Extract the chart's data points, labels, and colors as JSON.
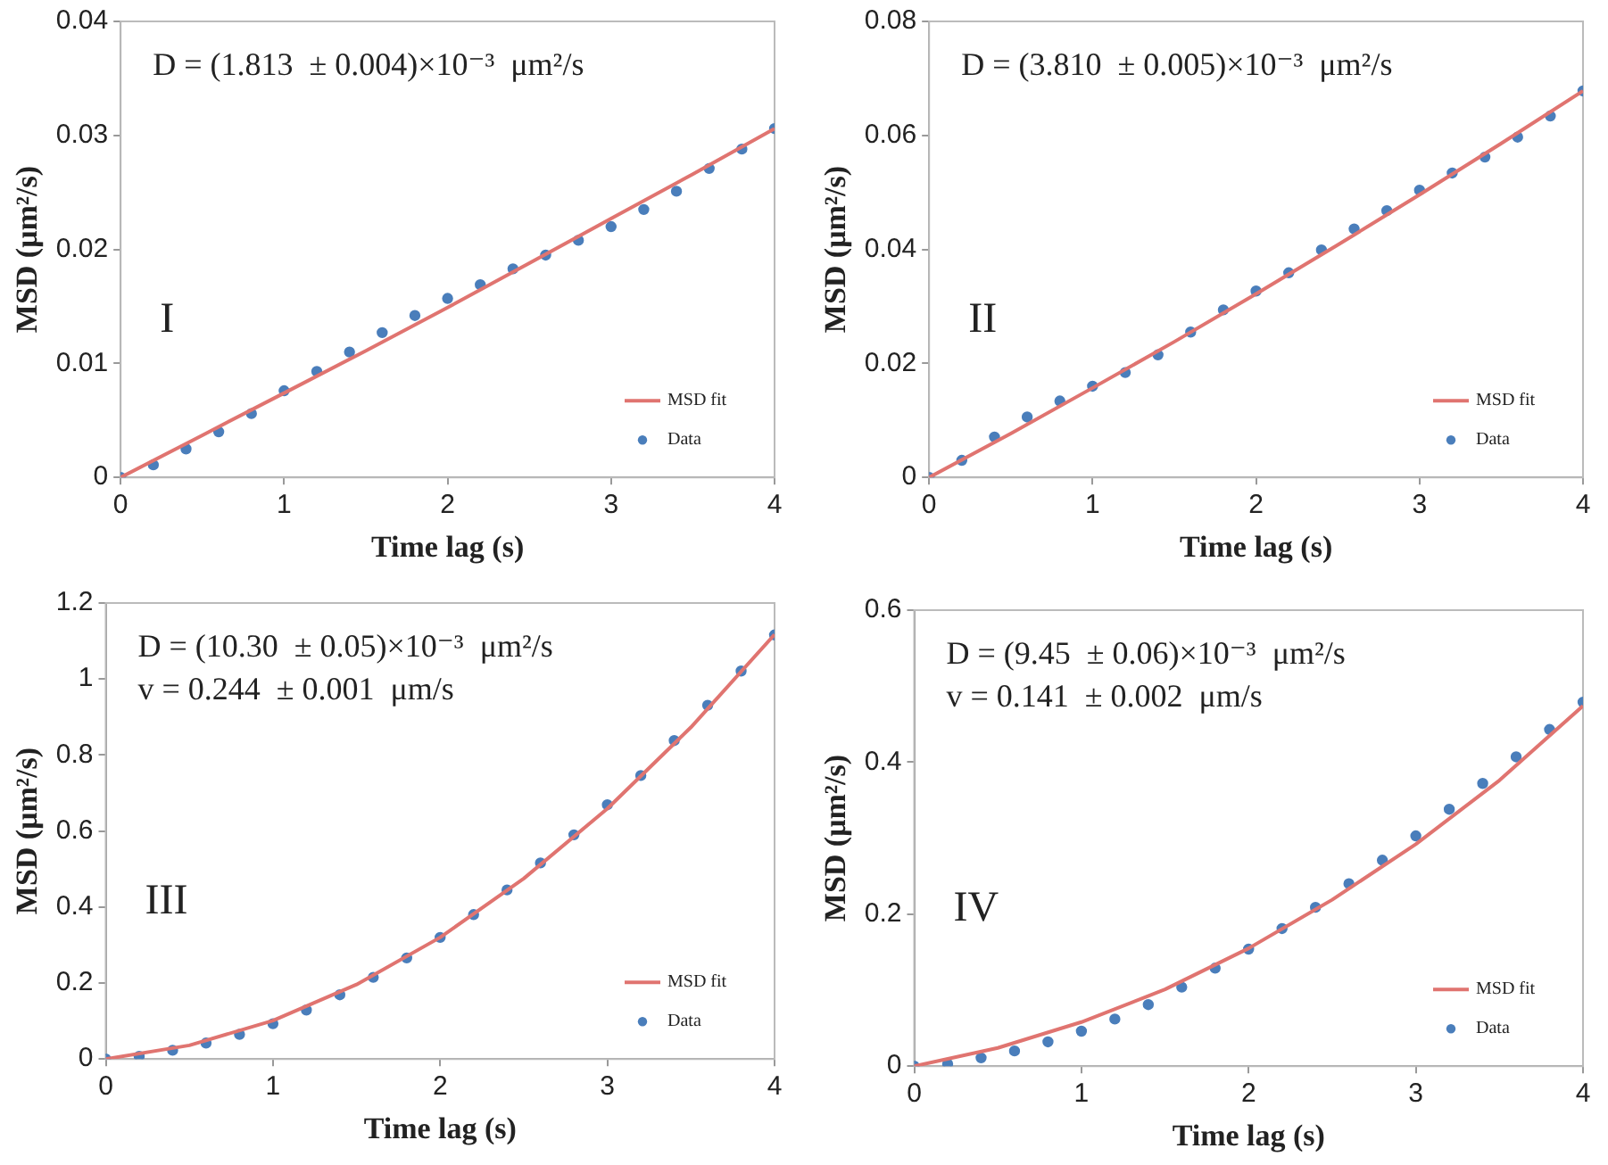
{
  "chart_data": [
    {
      "type": "scatter",
      "title": "I",
      "xlabel": "Time lag (s)",
      "ylabel": "MSD (μm²/s)",
      "annotations": [
        "D = (1.813  ± 0.004)×10⁻³  μm²/s"
      ],
      "xlim": [
        0,
        4
      ],
      "xticks": [
        0,
        1,
        2,
        3,
        4
      ],
      "ylim": [
        0,
        0.04
      ],
      "yticks": [
        0,
        0.01,
        0.02,
        0.03,
        0.04
      ],
      "legend": "bottom right",
      "series": [
        {
          "name": "MSD fit",
          "type": "line",
          "marker": "none",
          "color": "#e07470",
          "x": [
            0,
            0.5,
            1,
            1.5,
            2,
            2.5,
            3,
            3.5,
            4
          ],
          "values": [
            0,
            0.0037,
            0.0074,
            0.0111,
            0.0149,
            0.0188,
            0.0227,
            0.0266,
            0.0306
          ]
        },
        {
          "name": "Data",
          "type": "scatter",
          "marker": "circle",
          "color": "#4a7ebb",
          "x": [
            0,
            0.2,
            0.4,
            0.6,
            0.8,
            1,
            1.2,
            1.4,
            1.6,
            1.8,
            2,
            2.2,
            2.4,
            2.6,
            2.8,
            3,
            3.2,
            3.4,
            3.6,
            3.8,
            4
          ],
          "values": [
            0,
            0.0011,
            0.0025,
            0.004,
            0.0056,
            0.0076,
            0.0093,
            0.011,
            0.0127,
            0.0142,
            0.0157,
            0.0169,
            0.0183,
            0.0195,
            0.0208,
            0.022,
            0.0235,
            0.0251,
            0.0271,
            0.0288,
            0.0306
          ]
        }
      ]
    },
    {
      "type": "scatter",
      "title": "II",
      "xlabel": "Time lag (s)",
      "ylabel": "MSD (μm²/s)",
      "annotations": [
        "D = (3.810  ± 0.005)×10⁻³  μm²/s"
      ],
      "xlim": [
        0,
        4
      ],
      "xticks": [
        0,
        1,
        2,
        3,
        4
      ],
      "ylim": [
        0,
        0.08
      ],
      "yticks": [
        0,
        0.02,
        0.04,
        0.06,
        0.08
      ],
      "legend": "bottom right",
      "series": [
        {
          "name": "MSD fit",
          "type": "line",
          "marker": "none",
          "color": "#e07470",
          "x": [
            0,
            0.5,
            1,
            1.5,
            2,
            2.5,
            3,
            3.5,
            4
          ],
          "values": [
            0,
            0.0077,
            0.0157,
            0.0238,
            0.0322,
            0.0408,
            0.0496,
            0.0586,
            0.0678
          ]
        },
        {
          "name": "Data",
          "type": "scatter",
          "marker": "circle",
          "color": "#4a7ebb",
          "x": [
            0,
            0.2,
            0.4,
            0.6,
            0.8,
            1,
            1.2,
            1.4,
            1.6,
            1.8,
            2,
            2.2,
            2.4,
            2.6,
            2.8,
            3,
            3.2,
            3.4,
            3.6,
            3.8,
            4
          ],
          "values": [
            0,
            0.003,
            0.0071,
            0.0106,
            0.0134,
            0.016,
            0.0184,
            0.0215,
            0.0255,
            0.0294,
            0.0327,
            0.0359,
            0.0399,
            0.0436,
            0.0468,
            0.0504,
            0.0534,
            0.0562,
            0.0597,
            0.0634,
            0.0678
          ]
        }
      ]
    },
    {
      "type": "scatter",
      "title": "III",
      "xlabel": "Time lag (s)",
      "ylabel": "MSD (μm²/s)",
      "annotations": [
        "D = (10.30  ± 0.05)×10⁻³  μm²/s",
        "v = 0.244  ± 0.001  μm/s"
      ],
      "xlim": [
        0,
        4
      ],
      "xticks": [
        0,
        1,
        2,
        3,
        4
      ],
      "ylim": [
        0,
        1.2
      ],
      "yticks": [
        0,
        0.2,
        0.4,
        0.6,
        0.8,
        1,
        1.2
      ],
      "legend": "bottom right",
      "series": [
        {
          "name": "MSD fit",
          "type": "line",
          "marker": "none",
          "color": "#e07470",
          "x": [
            0,
            0.5,
            1,
            1.5,
            2,
            2.5,
            3,
            3.5,
            4
          ],
          "values": [
            0,
            0.036,
            0.101,
            0.196,
            0.32,
            0.475,
            0.659,
            0.873,
            1.117
          ]
        },
        {
          "name": "Data",
          "type": "scatter",
          "marker": "circle",
          "color": "#4a7ebb",
          "x": [
            0,
            0.2,
            0.4,
            0.6,
            0.8,
            1,
            1.2,
            1.4,
            1.6,
            1.8,
            2,
            2.2,
            2.4,
            2.6,
            2.8,
            3,
            3.2,
            3.4,
            3.6,
            3.8,
            4
          ],
          "values": [
            0,
            0.007,
            0.023,
            0.042,
            0.065,
            0.093,
            0.129,
            0.169,
            0.215,
            0.266,
            0.32,
            0.38,
            0.445,
            0.516,
            0.59,
            0.669,
            0.746,
            0.838,
            0.931,
            1.021,
            1.116
          ]
        }
      ]
    },
    {
      "type": "scatter",
      "title": "IV",
      "xlabel": "Time lag (s)",
      "ylabel": "MSD (μm²/s)",
      "annotations": [
        "D = (9.45  ± 0.06)×10⁻³  μm²/s",
        "v = 0.141  ± 0.002  μm/s"
      ],
      "xlim": [
        0,
        4
      ],
      "xticks": [
        0,
        1,
        2,
        3,
        4
      ],
      "ylim": [
        0,
        0.6
      ],
      "yticks": [
        0,
        0.2,
        0.4,
        0.6
      ],
      "legend": "bottom right",
      "series": [
        {
          "name": "MSD fit",
          "type": "line",
          "marker": "none",
          "color": "#e07470",
          "x": [
            0,
            0.5,
            1,
            1.5,
            2,
            2.5,
            3,
            3.5,
            4
          ],
          "values": [
            0,
            0.024,
            0.058,
            0.101,
            0.155,
            0.219,
            0.292,
            0.376,
            0.474
          ]
        },
        {
          "name": "Data",
          "type": "scatter",
          "marker": "circle",
          "color": "#4a7ebb",
          "x": [
            0,
            0.2,
            0.4,
            0.6,
            0.8,
            1,
            1.2,
            1.4,
            1.6,
            1.8,
            2,
            2.2,
            2.4,
            2.6,
            2.8,
            3,
            3.2,
            3.4,
            3.6,
            3.8,
            4
          ],
          "values": [
            0,
            0.003,
            0.011,
            0.02,
            0.032,
            0.046,
            0.062,
            0.081,
            0.104,
            0.129,
            0.154,
            0.181,
            0.209,
            0.24,
            0.271,
            0.303,
            0.338,
            0.372,
            0.407,
            0.443,
            0.479
          ]
        }
      ]
    }
  ]
}
